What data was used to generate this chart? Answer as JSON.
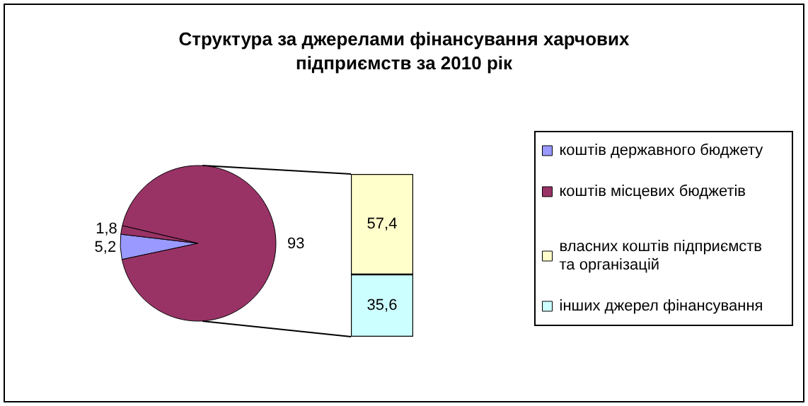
{
  "chart_data": [
    {
      "type": "pie",
      "title": "Структура за джерелами фінансування харчових\nпідприємств за 2010 рік",
      "categories": [
        "коштів державного бюджету",
        "коштів місцевих бюджетів",
        null
      ],
      "values": [
        5.2,
        1.8,
        93
      ],
      "colors": [
        "#9999ff",
        "#993366",
        "#993366"
      ],
      "value_labels": [
        "5,2",
        "1,8",
        "93"
      ],
      "legend": "right"
    },
    {
      "type": "bar",
      "stacked": true,
      "categories": [
        null
      ],
      "series": [
        {
          "name": "інших джерел фінансування",
          "color": "#ccffff",
          "values": [
            35.6
          ],
          "value_labels": [
            "35,6"
          ]
        },
        {
          "name": "власних коштів підприємств та організацій",
          "color": "#ffffcc",
          "values": [
            57.4
          ],
          "value_labels": [
            "57,4"
          ]
        }
      ],
      "legend": "right"
    }
  ]
}
